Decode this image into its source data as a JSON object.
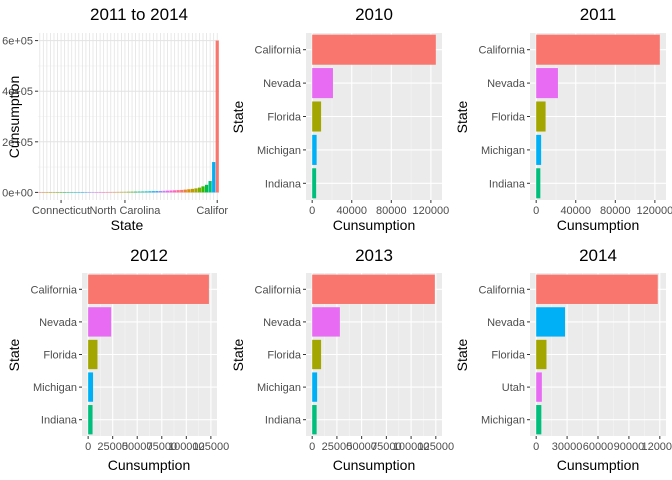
{
  "chart_data": [
    {
      "type": "bar",
      "title": "2011 to 2014",
      "xlabel": "State",
      "ylabel": "Cunsumption",
      "orientation": "vertical",
      "background": "white",
      "grid": true,
      "legend": "none",
      "visible_tick_labels": [
        "Connecticut",
        "North Carolina",
        "Califor"
      ],
      "y_ticks": [
        0,
        200000,
        400000,
        600000
      ],
      "y_tick_labels": [
        "0e+00",
        "2e+05",
        "4e+05",
        "6e+05"
      ],
      "ylim": [
        -30000,
        630000
      ],
      "values": [
        100,
        150,
        200,
        250,
        300,
        350,
        400,
        500,
        600,
        700,
        800,
        900,
        1000,
        1100,
        1200,
        1300,
        1400,
        1500,
        1600,
        1700,
        1800,
        1900,
        2000,
        2200,
        2400,
        2600,
        2800,
        3000,
        3300,
        3600,
        4000,
        4400,
        4800,
        5300,
        5800,
        6400,
        7000,
        7600,
        8300,
        9000,
        9800,
        11000,
        12500,
        14000,
        16000,
        19000,
        24000,
        30000,
        45000,
        120000,
        600000
      ],
      "colors": [
        "#F8766D",
        "#EA8331",
        "#D89000",
        "#C09B00",
        "#A3A500",
        "#7CAE00",
        "#39B600",
        "#00BB4E",
        "#00BF7D",
        "#00C1A3",
        "#00BFC4",
        "#00BAE0",
        "#00B0F6",
        "#35A2FF",
        "#9590FF",
        "#C77CFF",
        "#E76BF3",
        "#FA62DB",
        "#FF62BC",
        "#FF6C91",
        "#F8766D",
        "#EA8331",
        "#D89000",
        "#C09B00",
        "#A3A500",
        "#7CAE00",
        "#39B600",
        "#00BB4E",
        "#00BF7D",
        "#00C1A3",
        "#00BFC4",
        "#00BAE0",
        "#00B0F6",
        "#35A2FF",
        "#9590FF",
        "#C77CFF",
        "#E76BF3",
        "#FA62DB",
        "#FF62BC",
        "#FF6C91",
        "#F8766D",
        "#EA8331",
        "#D89000",
        "#C09B00",
        "#A3A500",
        "#7CAE00",
        "#39B600",
        "#00BB4E",
        "#00BF7D",
        "#00B0F6",
        "#F8766D"
      ]
    },
    {
      "type": "bar",
      "title": "2010",
      "xlabel": "Cunsumption",
      "ylabel": "State",
      "orientation": "horizontal",
      "grid": true,
      "legend": "none",
      "categories": [
        "California",
        "Nevada",
        "Florida",
        "Michigan",
        "Indiana"
      ],
      "values": [
        125000,
        21000,
        9000,
        4500,
        4000
      ],
      "colors": [
        "#F8766D",
        "#E76BF3",
        "#A3A500",
        "#00B0F6",
        "#00BF7D"
      ],
      "x_ticks": [
        0,
        40000,
        80000,
        120000
      ],
      "x_tick_labels": [
        "0",
        "40000",
        "80000",
        "120000"
      ],
      "xlim": [
        -6250,
        131250
      ]
    },
    {
      "type": "bar",
      "title": "2011",
      "xlabel": "Cunsumption",
      "ylabel": "State",
      "orientation": "horizontal",
      "grid": true,
      "legend": "none",
      "categories": [
        "California",
        "Nevada",
        "Florida",
        "Michigan",
        "Indiana"
      ],
      "values": [
        125000,
        22000,
        9500,
        5000,
        4200
      ],
      "colors": [
        "#F8766D",
        "#E76BF3",
        "#A3A500",
        "#00B0F6",
        "#00BF7D"
      ],
      "x_ticks": [
        0,
        40000,
        80000,
        120000
      ],
      "x_tick_labels": [
        "0",
        "40000",
        "80000",
        "120000"
      ],
      "xlim": [
        -6250,
        131250
      ]
    },
    {
      "type": "bar",
      "title": "2012",
      "xlabel": "Cunsumption",
      "ylabel": "State",
      "orientation": "horizontal",
      "grid": true,
      "legend": "none",
      "categories": [
        "California",
        "Nevada",
        "Florida",
        "Michigan",
        "Indiana"
      ],
      "values": [
        123000,
        23500,
        9500,
        5000,
        4500
      ],
      "colors": [
        "#F8766D",
        "#E76BF3",
        "#A3A500",
        "#00B0F6",
        "#00BF7D"
      ],
      "x_ticks": [
        0,
        25000,
        50000,
        75000,
        100000,
        125000
      ],
      "x_tick_labels": [
        "0",
        "25000",
        "50000",
        "75000",
        "100000",
        "125000"
      ],
      "xlim": [
        -6250,
        131250
      ]
    },
    {
      "type": "bar",
      "title": "2013",
      "xlabel": "Cunsumption",
      "ylabel": "State",
      "orientation": "horizontal",
      "grid": true,
      "legend": "none",
      "categories": [
        "California",
        "Nevada",
        "Florida",
        "Michigan",
        "Indiana"
      ],
      "values": [
        124000,
        28000,
        9000,
        5000,
        4500
      ],
      "colors": [
        "#F8766D",
        "#E76BF3",
        "#A3A500",
        "#00B0F6",
        "#00BF7D"
      ],
      "x_ticks": [
        0,
        25000,
        50000,
        75000,
        100000,
        125000
      ],
      "x_tick_labels": [
        "0",
        "25000",
        "50000",
        "75000",
        "100000",
        "125000"
      ],
      "xlim": [
        -6250,
        131250
      ]
    },
    {
      "type": "bar",
      "title": "2014",
      "xlabel": "Cunsumption",
      "ylabel": "State",
      "orientation": "horizontal",
      "grid": true,
      "legend": "none",
      "categories": [
        "California",
        "Nevada",
        "Florida",
        "Utah",
        "Michigan"
      ],
      "values": [
        118000,
        28000,
        10000,
        5500,
        5000
      ],
      "colors": [
        "#F8766D",
        "#00B0F6",
        "#A3A500",
        "#E76BF3",
        "#00BF7D"
      ],
      "x_ticks": [
        0,
        30000,
        60000,
        90000,
        120000
      ],
      "x_tick_labels": [
        "0",
        "30000",
        "60000",
        "90000",
        "120000"
      ],
      "xlim": [
        -6000,
        126000
      ]
    }
  ]
}
